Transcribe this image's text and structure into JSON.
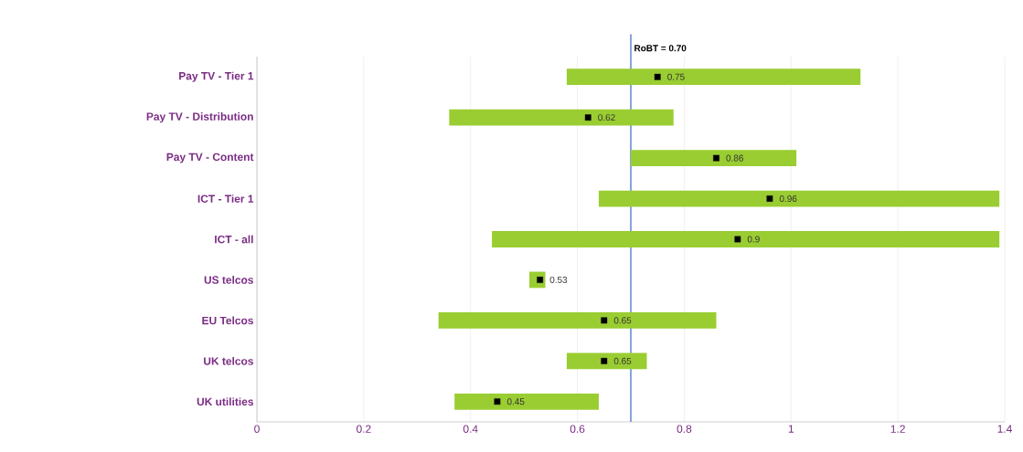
{
  "chart_data": {
    "type": "bar",
    "orientation": "horizontal",
    "categories": [
      "Pay TV - Tier 1",
      "Pay TV - Distribution",
      "Pay TV - Content",
      "ICT - Tier 1",
      "ICT - all",
      "US telcos",
      "EU Telcos",
      "UK telcos",
      "UK utilities"
    ],
    "series": [
      {
        "color": "#9acd32",
        "base": [
          0.58,
          0.36,
          0.7,
          0.64,
          0.44,
          0.51,
          0.34,
          0.58,
          0.37
        ],
        "values": [
          0.55,
          0.42,
          0.31,
          0.75,
          0.95,
          0.03,
          0.52,
          0.15,
          0.27
        ]
      },
      {
        "type": "scatter",
        "color": "#000000",
        "marker": "square",
        "values": [
          0.75,
          0.62,
          0.86,
          0.96,
          0.9,
          0.53,
          0.65,
          0.65,
          0.45
        ],
        "value_labels": [
          "0.75",
          "0.62",
          "0.86",
          "0.96",
          "0.9",
          "0.53",
          "0.65",
          "0.65",
          "0.45"
        ]
      }
    ],
    "xlim": [
      0,
      1.4
    ],
    "xticks": [
      0,
      0.2,
      0.4,
      0.6,
      0.8,
      1,
      1.2,
      1.4
    ],
    "grid": "x",
    "ref_lines": [
      {
        "axis": "x",
        "value": 0.7,
        "label": "RoBT = 0.70",
        "color": "#4472c4"
      }
    ]
  }
}
